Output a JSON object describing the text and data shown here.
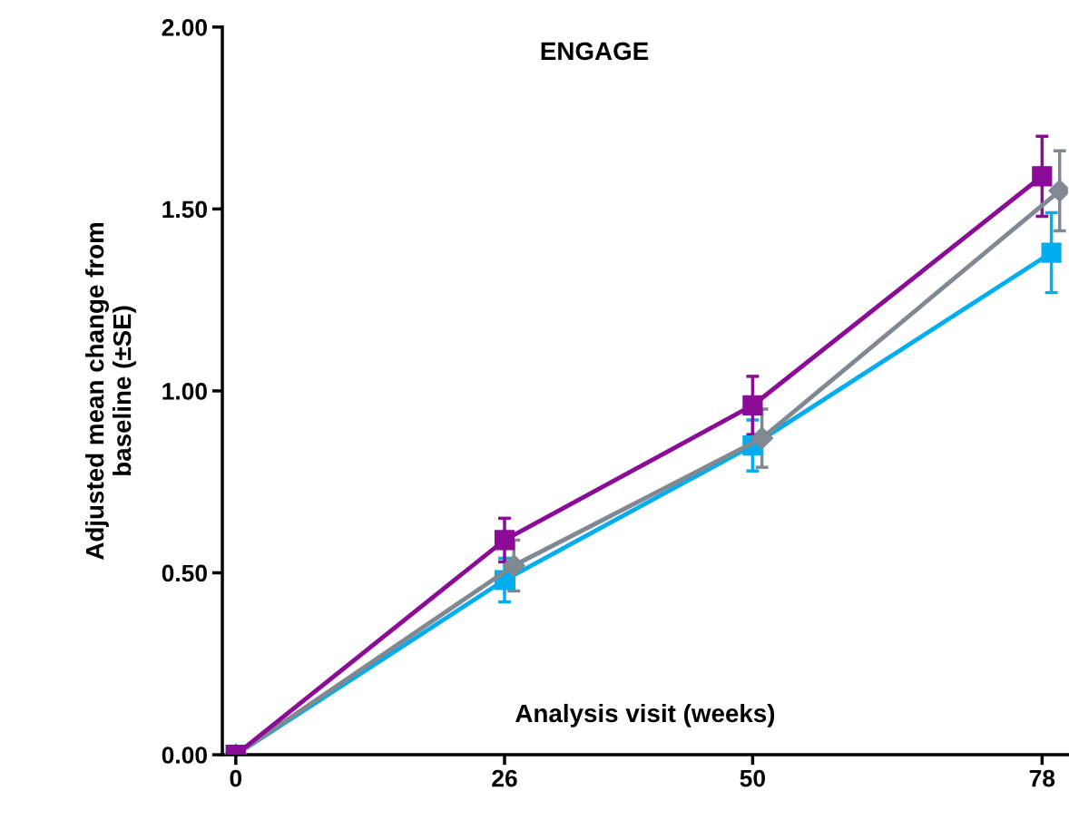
{
  "chart_data": {
    "type": "line",
    "title": "ENGAGE",
    "xlabel": "Analysis visit (weeks)",
    "ylabel": "Adjusted mean change from\nbaseline (±SE)",
    "xlim": [
      -1.3,
      80.5
    ],
    "xticks": [
      0,
      26,
      50,
      78
    ],
    "ylim": [
      0,
      2
    ],
    "yticks": [
      {
        "value": 0,
        "label": "0.00"
      },
      {
        "value": 0.5,
        "label": "0.50"
      },
      {
        "value": 1,
        "label": "1.00"
      },
      {
        "value": 1.5,
        "label": "1.50"
      },
      {
        "value": 2,
        "label": "2.00"
      }
    ],
    "grid": false,
    "legend": false,
    "line_style": "solid",
    "series": [
      {
        "color": "#00aeef",
        "marker": "square",
        "x": [
          0,
          26,
          50,
          78.9
        ],
        "values": [
          0,
          0.48,
          0.85,
          1.38
        ],
        "errors": [
          null,
          0.06,
          0.07,
          0.11
        ]
      },
      {
        "color": "#808891",
        "marker": "diamond",
        "x": [
          0,
          26.9,
          50.9,
          79.7
        ],
        "values": [
          0,
          0.52,
          0.87,
          1.55
        ],
        "errors": [
          null,
          0.07,
          0.08,
          0.11
        ]
      },
      {
        "color": "#8b0b96",
        "marker": "square",
        "x": [
          0,
          26,
          50,
          78
        ],
        "values": [
          0,
          0.59,
          0.96,
          1.59
        ],
        "errors": [
          null,
          0.06,
          0.08,
          0.11
        ]
      }
    ]
  }
}
